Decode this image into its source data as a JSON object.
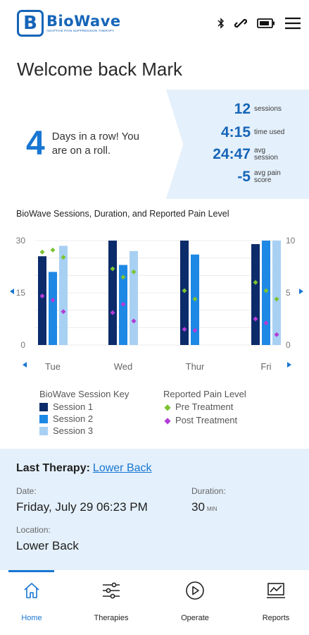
{
  "header": {
    "logo_letter": "B",
    "logo_name": "BioWave",
    "logo_tagline": "ADAPTIVE PAIN SUPPRESSION THERAPY"
  },
  "welcome": "Welcome back Mark",
  "streak": {
    "days": "4",
    "message": "Days in a row! You are on a roll."
  },
  "stats": [
    {
      "value": "12",
      "unit": "sessions"
    },
    {
      "value": "4:15",
      "unit": "time used"
    },
    {
      "value": "24:47",
      "unit": "avg session"
    },
    {
      "value": "-5",
      "unit": "avg pain score"
    }
  ],
  "chart_data": {
    "type": "bar",
    "title": "BioWave Sessions, Duration, and Reported Pain Level",
    "categories": [
      "Tue",
      "Wed",
      "Thur",
      "Fri"
    ],
    "left_axis": {
      "ticks": [
        "30",
        "15",
        "0"
      ],
      "ylim": [
        0,
        30
      ]
    },
    "right_axis": {
      "ticks": [
        "10",
        "5",
        "0"
      ],
      "ylim": [
        0,
        10
      ]
    },
    "series": [
      {
        "name": "Session 1",
        "kind": "bar",
        "color": "#0c2b6b",
        "values": [
          25.5,
          30,
          30,
          29
        ]
      },
      {
        "name": "Session 2",
        "kind": "bar",
        "color": "#1e88e5",
        "values": [
          21,
          23,
          26,
          30
        ]
      },
      {
        "name": "Session 3",
        "kind": "bar",
        "color": "#a8d0f3",
        "values": [
          28.5,
          27,
          null,
          30
        ]
      },
      {
        "name": "Pre Treatment",
        "kind": "points",
        "axis": "right",
        "color": "#7cc332",
        "values": [
          [
            8.9,
            9.1,
            8.4
          ],
          [
            7.3,
            6.5,
            7.0
          ],
          [
            5.2,
            4.4,
            null
          ],
          [
            6.0,
            5.2,
            4.4
          ]
        ]
      },
      {
        "name": "Post Treatment",
        "kind": "points",
        "axis": "right",
        "color": "#b23cd6",
        "values": [
          [
            4.7,
            4.3,
            3.2
          ],
          [
            3.1,
            3.9,
            2.3
          ],
          [
            1.5,
            1.4,
            null
          ],
          [
            2.5,
            2.1,
            1.0
          ]
        ]
      }
    ],
    "grid": true
  },
  "legend": {
    "session_title": "BioWave Session Key",
    "sessions": [
      "Session 1",
      "Session 2",
      "Session 3"
    ],
    "session_colors": [
      "#0c2b6b",
      "#1e88e5",
      "#a8d0f3"
    ],
    "pain_title": "Reported Pain Level",
    "pain": [
      "Pre Treatment",
      "Post Treatment"
    ],
    "pain_colors": [
      "#7cc332",
      "#b23cd6"
    ]
  },
  "last_therapy": {
    "label": "Last Therapy:",
    "link": "Lower Back",
    "date_label": "Date:",
    "date_value": "Friday, July 29 06:23 PM",
    "duration_label": "Duration:",
    "duration_value": "30",
    "duration_unit": "MIN",
    "location_label": "Location:",
    "location_value": "Lower Back"
  },
  "nav": [
    {
      "label": "Home",
      "icon": "home-icon",
      "active": true
    },
    {
      "label": "Therapies",
      "icon": "sliders-icon",
      "active": false
    },
    {
      "label": "Operate",
      "icon": "play-circle-icon",
      "active": false
    },
    {
      "label": "Reports",
      "icon": "chart-icon",
      "active": false
    }
  ]
}
